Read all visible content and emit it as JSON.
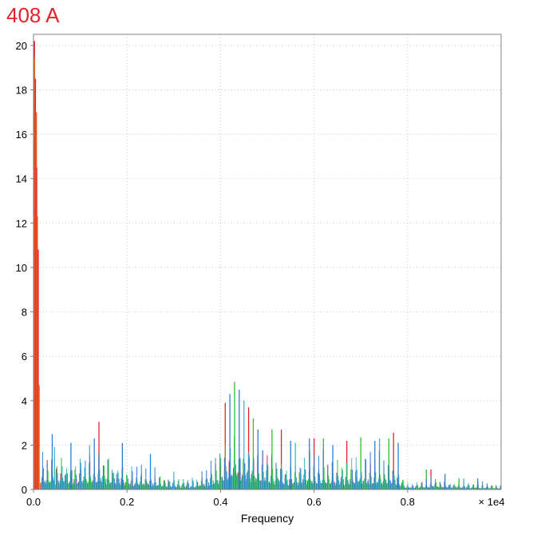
{
  "chart_data": {
    "type": "line",
    "title": "408 A",
    "xlabel": "Frequency",
    "ylabel": "",
    "x_multiplier_label": "× 1e4",
    "xlim": [
      0,
      1.0
    ],
    "ylim": [
      0,
      20.5
    ],
    "xticks": [
      "0.0",
      "0.2",
      "0.4",
      "0.6",
      "0.8"
    ],
    "xtick_values": [
      0.0,
      0.2,
      0.4,
      0.6,
      0.8
    ],
    "yticks": [
      "0",
      "2",
      "4",
      "6",
      "8",
      "10",
      "12",
      "14",
      "16",
      "18",
      "20"
    ],
    "ytick_values": [
      0,
      2,
      4,
      6,
      8,
      10,
      12,
      14,
      16,
      18,
      20
    ],
    "grid": true,
    "legend": "none",
    "colors": {
      "red": "#e8202a",
      "green": "#2ec02e",
      "blue": "#2f7fd0",
      "cyan": "#40b8c8",
      "grid": "#c8c8c8",
      "axes": "#808080"
    },
    "spikes": {
      "red": [
        [
          0.002,
          20.2
        ],
        [
          0.004,
          18.5
        ],
        [
          0.006,
          17.0
        ],
        [
          0.008,
          12.3
        ],
        [
          0.01,
          10.8
        ],
        [
          0.012,
          4.7
        ],
        [
          0.14,
          3.05
        ],
        [
          0.41,
          3.9
        ],
        [
          0.46,
          3.7
        ],
        [
          0.53,
          2.7
        ],
        [
          0.6,
          2.3
        ],
        [
          0.67,
          2.2
        ],
        [
          0.77,
          2.55
        ],
        [
          0.85,
          0.9
        ]
      ],
      "green": [
        [
          0.43,
          4.85
        ],
        [
          0.47,
          3.2
        ],
        [
          0.51,
          2.7
        ],
        [
          0.62,
          2.3
        ],
        [
          0.7,
          2.35
        ],
        [
          0.76,
          2.3
        ],
        [
          0.84,
          0.9
        ],
        [
          0.91,
          0.5
        ]
      ],
      "blue": [
        [
          0.04,
          2.5
        ],
        [
          0.08,
          2.1
        ],
        [
          0.13,
          2.3
        ],
        [
          0.19,
          2.1
        ],
        [
          0.25,
          1.6
        ],
        [
          0.42,
          4.3
        ],
        [
          0.44,
          4.5
        ],
        [
          0.48,
          2.7
        ],
        [
          0.55,
          2.2
        ],
        [
          0.59,
          2.3
        ],
        [
          0.64,
          2.0
        ],
        [
          0.73,
          2.2
        ],
        [
          0.78,
          2.1
        ],
        [
          0.88,
          0.7
        ],
        [
          0.95,
          0.5
        ]
      ],
      "cyan": [
        [
          0.045,
          1.9
        ],
        [
          0.12,
          2.0
        ],
        [
          0.3,
          0.8
        ],
        [
          0.45,
          4.0
        ],
        [
          0.56,
          2.1
        ],
        [
          0.74,
          2.3
        ],
        [
          0.92,
          0.5
        ]
      ]
    },
    "envelope": [
      [
        0.0,
        1.8
      ],
      [
        0.05,
        2.0
      ],
      [
        0.1,
        2.0
      ],
      [
        0.15,
        2.2
      ],
      [
        0.2,
        1.5
      ],
      [
        0.25,
        1.2
      ],
      [
        0.3,
        0.8
      ],
      [
        0.35,
        0.7
      ],
      [
        0.38,
        1.5
      ],
      [
        0.41,
        3.0
      ],
      [
        0.43,
        4.0
      ],
      [
        0.45,
        3.5
      ],
      [
        0.48,
        2.6
      ],
      [
        0.52,
        2.3
      ],
      [
        0.55,
        1.6
      ],
      [
        0.58,
        2.0
      ],
      [
        0.62,
        2.0
      ],
      [
        0.65,
        1.8
      ],
      [
        0.7,
        2.0
      ],
      [
        0.75,
        2.0
      ],
      [
        0.78,
        1.6
      ],
      [
        0.8,
        0.4
      ],
      [
        0.85,
        0.7
      ],
      [
        0.9,
        0.5
      ],
      [
        0.95,
        0.4
      ],
      [
        1.0,
        0.3
      ]
    ]
  }
}
